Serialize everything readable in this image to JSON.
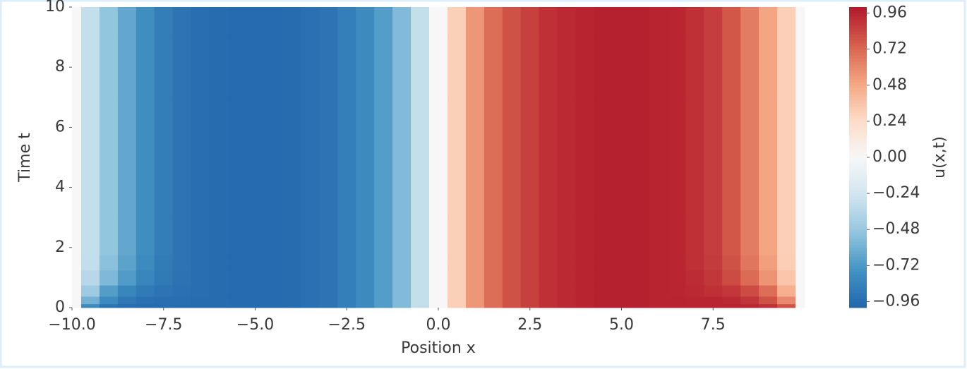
{
  "chart_data": {
    "type": "contourf",
    "xlabel": "Position x",
    "ylabel": "Time t",
    "colorbar_label": "u(x,t)",
    "x": [
      -10,
      -9.5,
      -9,
      -8.5,
      -8,
      -7.5,
      -7,
      -6.5,
      -6,
      -5.5,
      -5,
      -4.5,
      -4,
      -3.5,
      -3,
      -2.5,
      -2,
      -1.5,
      -1,
      -0.5,
      0,
      0.5,
      1,
      1.5,
      2,
      2.5,
      3,
      3.5,
      4,
      4.5,
      5,
      5.5,
      6,
      6.5,
      7,
      7.5,
      8,
      8.5,
      9,
      9.5,
      10
    ],
    "y": [
      0,
      0.25,
      0.5,
      1,
      1.5,
      2,
      4,
      6,
      8,
      10
    ],
    "z": [
      [
        0,
        -0.8,
        -0.92,
        -0.95,
        -0.96,
        -0.96,
        -0.96,
        -0.96,
        -0.96,
        -0.97,
        -0.97,
        -0.97,
        -0.96,
        -0.94,
        -0.92,
        -0.86,
        -0.8,
        -0.7,
        -0.55,
        -0.3,
        0,
        0.3,
        0.55,
        0.7,
        0.8,
        0.86,
        0.92,
        0.94,
        0.96,
        0.97,
        0.97,
        0.97,
        0.96,
        0.96,
        0.96,
        0.96,
        0.96,
        0.95,
        0.92,
        0.8,
        0
      ],
      [
        0,
        -0.6,
        -0.8,
        -0.9,
        -0.94,
        -0.95,
        -0.95,
        -0.96,
        -0.96,
        -0.97,
        -0.97,
        -0.97,
        -0.96,
        -0.94,
        -0.92,
        -0.86,
        -0.8,
        -0.7,
        -0.55,
        -0.3,
        0,
        0.3,
        0.55,
        0.7,
        0.8,
        0.86,
        0.92,
        0.94,
        0.96,
        0.97,
        0.97,
        0.97,
        0.96,
        0.96,
        0.95,
        0.95,
        0.94,
        0.9,
        0.8,
        0.6,
        0
      ],
      [
        0,
        -0.45,
        -0.7,
        -0.82,
        -0.89,
        -0.92,
        -0.94,
        -0.95,
        -0.96,
        -0.97,
        -0.97,
        -0.97,
        -0.96,
        -0.94,
        -0.92,
        -0.86,
        -0.8,
        -0.7,
        -0.55,
        -0.3,
        0,
        0.3,
        0.55,
        0.7,
        0.8,
        0.86,
        0.92,
        0.94,
        0.96,
        0.97,
        0.97,
        0.97,
        0.96,
        0.95,
        0.94,
        0.92,
        0.89,
        0.82,
        0.7,
        0.45,
        0
      ],
      [
        0,
        -0.35,
        -0.56,
        -0.71,
        -0.82,
        -0.89,
        -0.93,
        -0.95,
        -0.96,
        -0.97,
        -0.97,
        -0.97,
        -0.96,
        -0.94,
        -0.92,
        -0.86,
        -0.8,
        -0.7,
        -0.55,
        -0.3,
        0,
        0.3,
        0.55,
        0.7,
        0.8,
        0.86,
        0.92,
        0.94,
        0.96,
        0.97,
        0.97,
        0.97,
        0.96,
        0.95,
        0.93,
        0.89,
        0.82,
        0.71,
        0.56,
        0.35,
        0
      ],
      [
        0,
        -0.31,
        -0.52,
        -0.67,
        -0.8,
        -0.88,
        -0.92,
        -0.95,
        -0.96,
        -0.97,
        -0.97,
        -0.97,
        -0.96,
        -0.94,
        -0.92,
        -0.86,
        -0.8,
        -0.7,
        -0.55,
        -0.3,
        0,
        0.3,
        0.55,
        0.7,
        0.8,
        0.86,
        0.92,
        0.94,
        0.96,
        0.97,
        0.97,
        0.97,
        0.96,
        0.95,
        0.92,
        0.88,
        0.8,
        0.67,
        0.52,
        0.31,
        0
      ],
      [
        0,
        -0.3,
        -0.5,
        -0.65,
        -0.78,
        -0.87,
        -0.92,
        -0.95,
        -0.96,
        -0.97,
        -0.97,
        -0.97,
        -0.96,
        -0.94,
        -0.92,
        -0.86,
        -0.8,
        -0.7,
        -0.55,
        -0.3,
        0,
        0.3,
        0.55,
        0.7,
        0.8,
        0.86,
        0.92,
        0.94,
        0.96,
        0.97,
        0.97,
        0.97,
        0.96,
        0.95,
        0.92,
        0.87,
        0.78,
        0.65,
        0.5,
        0.3,
        0
      ],
      [
        0,
        -0.3,
        -0.5,
        -0.65,
        -0.78,
        -0.87,
        -0.92,
        -0.95,
        -0.96,
        -0.97,
        -0.97,
        -0.97,
        -0.96,
        -0.94,
        -0.92,
        -0.86,
        -0.8,
        -0.7,
        -0.55,
        -0.3,
        0,
        0.3,
        0.55,
        0.7,
        0.8,
        0.86,
        0.92,
        0.94,
        0.96,
        0.97,
        0.97,
        0.97,
        0.96,
        0.95,
        0.92,
        0.87,
        0.78,
        0.65,
        0.5,
        0.3,
        0
      ],
      [
        0,
        -0.3,
        -0.5,
        -0.65,
        -0.78,
        -0.87,
        -0.92,
        -0.95,
        -0.96,
        -0.97,
        -0.97,
        -0.97,
        -0.96,
        -0.94,
        -0.92,
        -0.86,
        -0.8,
        -0.7,
        -0.55,
        -0.3,
        0,
        0.3,
        0.55,
        0.7,
        0.8,
        0.86,
        0.92,
        0.94,
        0.96,
        0.97,
        0.97,
        0.97,
        0.96,
        0.95,
        0.92,
        0.87,
        0.78,
        0.65,
        0.5,
        0.3,
        0
      ],
      [
        0,
        -0.3,
        -0.5,
        -0.65,
        -0.78,
        -0.87,
        -0.92,
        -0.95,
        -0.96,
        -0.97,
        -0.97,
        -0.97,
        -0.96,
        -0.94,
        -0.92,
        -0.86,
        -0.8,
        -0.7,
        -0.55,
        -0.3,
        0,
        0.3,
        0.55,
        0.7,
        0.8,
        0.86,
        0.92,
        0.94,
        0.96,
        0.97,
        0.97,
        0.97,
        0.96,
        0.95,
        0.92,
        0.87,
        0.78,
        0.65,
        0.5,
        0.3,
        0
      ],
      [
        0,
        -0.3,
        -0.5,
        -0.65,
        -0.78,
        -0.87,
        -0.92,
        -0.95,
        -0.96,
        -0.97,
        -0.97,
        -0.97,
        -0.96,
        -0.94,
        -0.92,
        -0.86,
        -0.8,
        -0.7,
        -0.55,
        -0.3,
        0,
        0.3,
        0.55,
        0.7,
        0.8,
        0.86,
        0.92,
        0.94,
        0.96,
        0.97,
        0.97,
        0.97,
        0.96,
        0.95,
        0.92,
        0.87,
        0.78,
        0.65,
        0.5,
        0.3,
        0
      ]
    ],
    "colormap": [
      "#2166ac",
      "#4393c3",
      "#92c5de",
      "#d1e5f0",
      "#f7f7f7",
      "#fddbc7",
      "#f4a582",
      "#d6604d",
      "#b2182b"
    ],
    "xlim": [
      -10,
      10
    ],
    "ylim": [
      0,
      10
    ],
    "clim": [
      -1,
      1
    ],
    "xticks": [
      {
        "value": -10,
        "label": "−10.0"
      },
      {
        "value": -7.5,
        "label": "−7.5"
      },
      {
        "value": -5,
        "label": "−5.0"
      },
      {
        "value": -2.5,
        "label": "−2.5"
      },
      {
        "value": 0,
        "label": "0.0"
      },
      {
        "value": 2.5,
        "label": "2.5"
      },
      {
        "value": 5,
        "label": "5.0"
      },
      {
        "value": 7.5,
        "label": "7.5"
      }
    ],
    "yticks": [
      0,
      2,
      4,
      6,
      8,
      10
    ],
    "cticks": [
      {
        "value": -0.96,
        "label": "−0.96"
      },
      {
        "value": -0.72,
        "label": "−0.72"
      },
      {
        "value": -0.48,
        "label": "−0.48"
      },
      {
        "value": -0.24,
        "label": "−0.24"
      },
      {
        "value": 0,
        "label": "0.00"
      },
      0.24,
      0.48,
      0.72,
      0.96
    ]
  }
}
